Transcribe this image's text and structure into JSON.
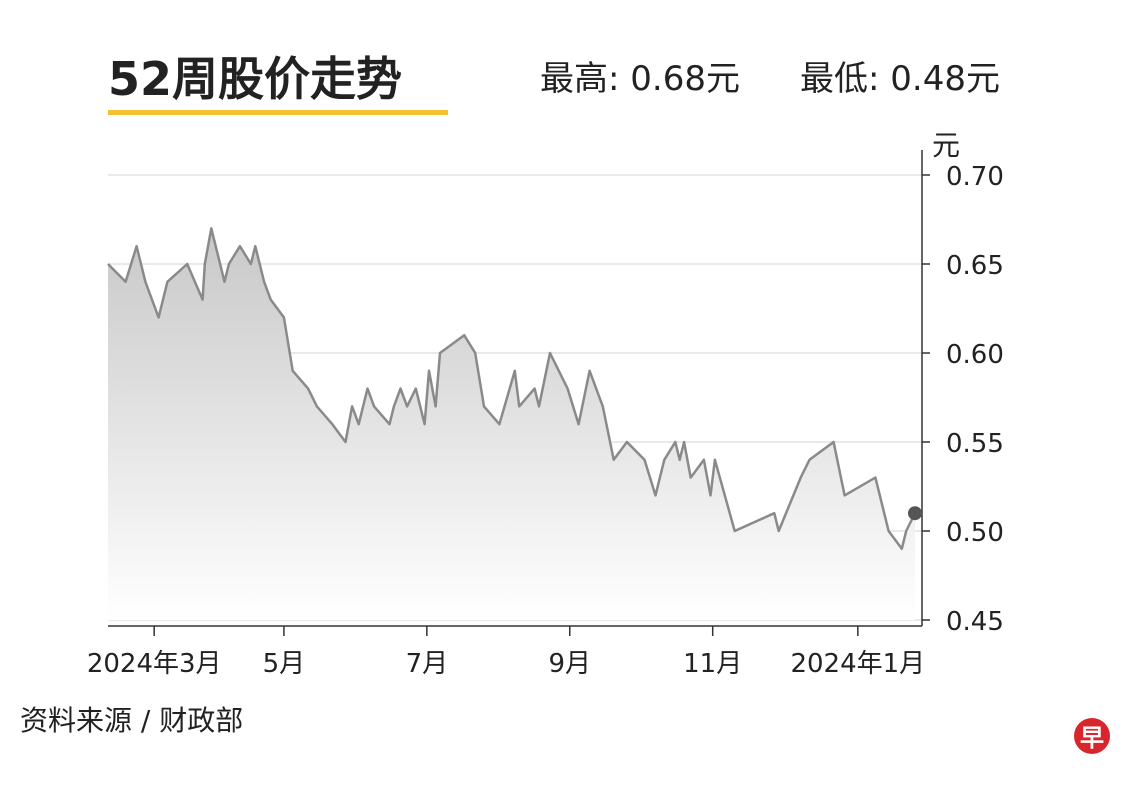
{
  "chart_data": {
    "type": "line",
    "title": "52周股价走势",
    "high_label": "最高: 0.68元",
    "low_label": "最低: 0.48元",
    "y_unit": "元",
    "source": "资料来源 / 财政部",
    "logo": "早",
    "color": "#8a8a8a",
    "grid": true,
    "xlim": [
      0,
      367
    ],
    "ylim": [
      0.45,
      0.7
    ],
    "xticks": [
      {
        "value": 21,
        "label": "2024年3月"
      },
      {
        "value": 80,
        "label": "5月"
      },
      {
        "value": 145,
        "label": "7月"
      },
      {
        "value": 210,
        "label": "9月"
      },
      {
        "value": 275,
        "label": "11月"
      },
      {
        "value": 341,
        "label": "2024年1月"
      }
    ],
    "yticks": [
      {
        "value": 0.7,
        "label": "0.70"
      },
      0.65,
      {
        "value": 0.6,
        "label": "0.60"
      },
      0.55,
      {
        "value": 0.5,
        "label": "0.50"
      },
      0.45
    ],
    "x": [
      0,
      8,
      13,
      15,
      17,
      23,
      27,
      36,
      43,
      44,
      47,
      49,
      53,
      55,
      60,
      65,
      67,
      71,
      74,
      80,
      84,
      91,
      95,
      102,
      108,
      111,
      114,
      118,
      121,
      128,
      130,
      133,
      136,
      140,
      144,
      146,
      149,
      151,
      162,
      167,
      171,
      178,
      185,
      187,
      194,
      196,
      201,
      209,
      214,
      219,
      225,
      230,
      236,
      244,
      249,
      251,
      253,
      258,
      260,
      262,
      265,
      271,
      274,
      276,
      285,
      303,
      305,
      315,
      319,
      330,
      335,
      349,
      355,
      361,
      363,
      367
    ],
    "values": [
      0.65,
      0.64,
      0.66,
      0.65,
      0.64,
      0.62,
      0.64,
      0.65,
      0.63,
      0.65,
      0.67,
      0.66,
      0.64,
      0.65,
      0.66,
      0.65,
      0.66,
      0.64,
      0.63,
      0.62,
      0.59,
      0.58,
      0.57,
      0.56,
      0.55,
      0.57,
      0.56,
      0.58,
      0.57,
      0.56,
      0.57,
      0.58,
      0.57,
      0.58,
      0.56,
      0.59,
      0.57,
      0.6,
      0.61,
      0.6,
      0.57,
      0.56,
      0.59,
      0.57,
      0.58,
      0.57,
      0.6,
      0.58,
      0.56,
      0.59,
      0.57,
      0.54,
      0.55,
      0.54,
      0.52,
      0.53,
      0.54,
      0.55,
      0.54,
      0.55,
      0.53,
      0.54,
      0.52,
      0.54,
      0.5,
      0.51,
      0.5,
      0.53,
      0.54,
      0.55,
      0.52,
      0.53,
      0.5,
      0.49,
      0.5,
      0.51
    ]
  }
}
